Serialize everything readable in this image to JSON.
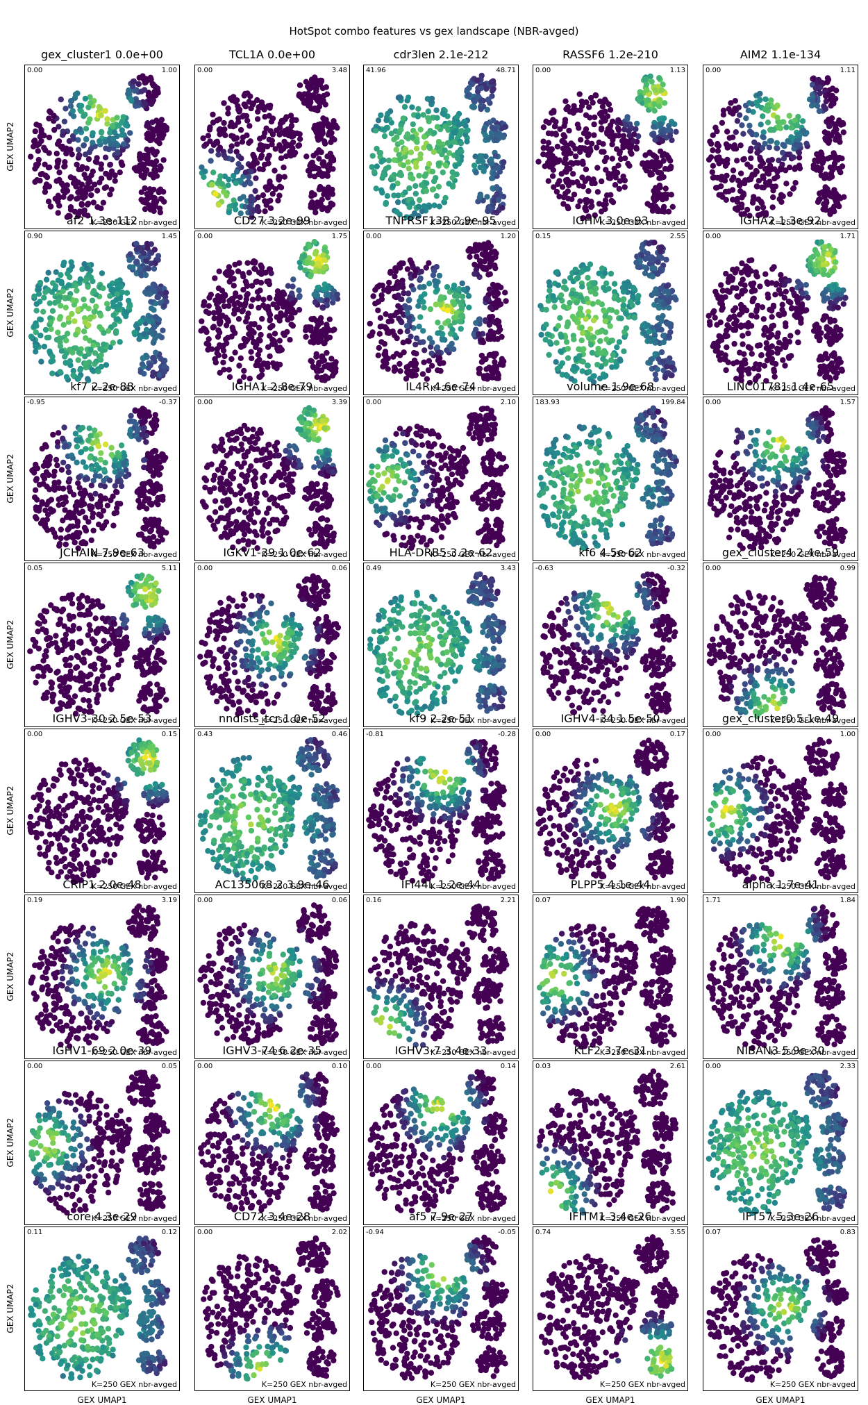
{
  "figure_title": "HotSpot combo features vs gex landscape (NBR-avged)",
  "xlabel": "GEX UMAP1",
  "ylabel": "GEX UMAP2",
  "panel_note": "K=250 GEX nbr-avged",
  "colormap": [
    "#440154",
    "#3b528b",
    "#21918c",
    "#5ec962",
    "#fde725"
  ],
  "chart_data": {
    "type": "scatter",
    "grid": false,
    "panels": [
      {
        "title": "gex_cluster1 0.0e+00",
        "vmin": "0.00",
        "vmax": "1.00",
        "hot": "upper-middle"
      },
      {
        "title": "TCL1A 0.0e+00",
        "vmin": "0.00",
        "vmax": "3.48",
        "hot": "lower-left"
      },
      {
        "title": "cdr3len 2.1e-212",
        "vmin": "41.96",
        "vmax": "48.71",
        "hot": "broad"
      },
      {
        "title": "RASSF6 1.2e-210",
        "vmin": "0.00",
        "vmax": "1.13",
        "hot": "upper-right"
      },
      {
        "title": "AIM2 1.1e-134",
        "vmin": "0.00",
        "vmax": "1.11",
        "hot": "upper-middle"
      },
      {
        "title": "af2 1.3e-112",
        "vmin": "0.90",
        "vmax": "1.45",
        "hot": "broad"
      },
      {
        "title": "CD27 3.2e-99",
        "vmin": "0.00",
        "vmax": "1.75",
        "hot": "upper-right"
      },
      {
        "title": "TNFRSF13B 2.9e-95",
        "vmin": "0.00",
        "vmax": "1.20",
        "hot": "middle"
      },
      {
        "title": "IGHM 3.0e-93",
        "vmin": "0.15",
        "vmax": "2.55",
        "hot": "broad"
      },
      {
        "title": "IGHA2 1.3e-92",
        "vmin": "0.00",
        "vmax": "1.71",
        "hot": "upper-right"
      },
      {
        "title": "kf7 2.2e-88",
        "vmin": "-0.95",
        "vmax": "-0.37",
        "hot": "upper-middle"
      },
      {
        "title": "IGHA1 2.8e-79",
        "vmin": "0.00",
        "vmax": "3.39",
        "hot": "upper-right"
      },
      {
        "title": "IL4R 4.6e-74",
        "vmin": "0.00",
        "vmax": "2.10",
        "hot": "left"
      },
      {
        "title": "volume 1.9e-68",
        "vmin": "183.93",
        "vmax": "199.84",
        "hot": "broad"
      },
      {
        "title": "LINC01781 1.4e-65",
        "vmin": "0.00",
        "vmax": "1.57",
        "hot": "upper-middle"
      },
      {
        "title": "JCHAIN 7.9e-63",
        "vmin": "0.05",
        "vmax": "5.11",
        "hot": "upper-right"
      },
      {
        "title": "IGKV1-39 1.0e-62",
        "vmin": "0.00",
        "vmax": "0.06",
        "hot": "middle"
      },
      {
        "title": "HLA-DRB5 3.2e-62",
        "vmin": "0.49",
        "vmax": "3.43",
        "hot": "broad"
      },
      {
        "title": "kf6 4.5e-62",
        "vmin": "-0.63",
        "vmax": "-0.32",
        "hot": "upper-middle"
      },
      {
        "title": "gex_cluster4 2.4e-59",
        "vmin": "0.00",
        "vmax": "0.99",
        "hot": "lower-middle"
      },
      {
        "title": "IGHV3-30 2.5e-53",
        "vmin": "0.00",
        "vmax": "0.15",
        "hot": "upper-right"
      },
      {
        "title": "nndists_tcr 1.0e-52",
        "vmin": "0.43",
        "vmax": "0.46",
        "hot": "broad"
      },
      {
        "title": "kf9 2.2e-51",
        "vmin": "-0.81",
        "vmax": "-0.28",
        "hot": "upper-middle"
      },
      {
        "title": "IGHV4-34 1.5e-50",
        "vmin": "0.00",
        "vmax": "0.17",
        "hot": "middle"
      },
      {
        "title": "gex_cluster0 5.1e-49",
        "vmin": "0.00",
        "vmax": "1.00",
        "hot": "left"
      },
      {
        "title": "CRIP1 2.0e-48",
        "vmin": "0.19",
        "vmax": "3.19",
        "hot": "middle"
      },
      {
        "title": "AC135068.2 3.9e-46",
        "vmin": "0.00",
        "vmax": "0.06",
        "hot": "middle"
      },
      {
        "title": "IFI44L 1.2e-44",
        "vmin": "0.16",
        "vmax": "2.21",
        "hot": "lower-left"
      },
      {
        "title": "PLPP5 4.1e-44",
        "vmin": "0.07",
        "vmax": "1.90",
        "hot": "left"
      },
      {
        "title": "alpha 1.7e-41",
        "vmin": "1.71",
        "vmax": "1.84",
        "hot": "upper-middle"
      },
      {
        "title": "IGHV1-69 2.0e-39",
        "vmin": "0.00",
        "vmax": "0.05",
        "hot": "left"
      },
      {
        "title": "IGHV3-74 6.2e-35",
        "vmin": "0.00",
        "vmax": "0.10",
        "hot": "upper-middle"
      },
      {
        "title": "IGHV3-7 3.4e-33",
        "vmin": "0.00",
        "vmax": "0.14",
        "hot": "upper-middle"
      },
      {
        "title": "KLF2 3.7e-31",
        "vmin": "0.03",
        "vmax": "2.61",
        "hot": "lower-left"
      },
      {
        "title": "NIBAN3 5.9e-30",
        "vmin": "0.00",
        "vmax": "2.33",
        "hot": "broad"
      },
      {
        "title": "core 4.3e-29",
        "vmin": "0.11",
        "vmax": "0.12",
        "hot": "broad"
      },
      {
        "title": "CD72 3.4e-28",
        "vmin": "0.00",
        "vmax": "2.02",
        "hot": "lower-middle"
      },
      {
        "title": "af5 7.9e-27",
        "vmin": "-0.94",
        "vmax": "-0.05",
        "hot": "upper-middle"
      },
      {
        "title": "IFITM1 3.4e-26",
        "vmin": "0.74",
        "vmax": "3.55",
        "hot": "lower-right"
      },
      {
        "title": "IFT57 5.3e-26",
        "vmin": "0.07",
        "vmax": "0.83",
        "hot": "middle"
      }
    ]
  }
}
